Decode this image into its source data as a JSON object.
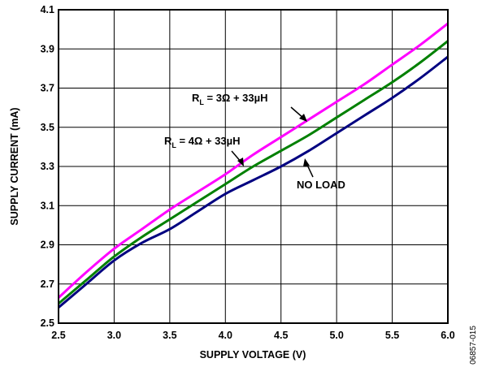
{
  "chart_data": {
    "type": "line",
    "xlabel": "SUPPLY VOLTAGE (V)",
    "ylabel": "SUPPLY CURRENT (mA)",
    "xlim": [
      2.5,
      6.0
    ],
    "ylim": [
      2.5,
      4.1
    ],
    "xticks": [
      "2.5",
      "3.0",
      "3.5",
      "4.0",
      "4.5",
      "5.0",
      "5.5",
      "6.0"
    ],
    "yticks": [
      "2.5",
      "2.7",
      "2.9",
      "3.1",
      "3.3",
      "3.5",
      "3.7",
      "3.9",
      "4.1"
    ],
    "grid": true,
    "figure_id": "06857-015",
    "series": [
      {
        "name": "RL = 3Ω + 33µH",
        "color": "#ff00ff",
        "x": [
          2.5,
          2.75,
          3.0,
          3.25,
          3.5,
          3.75,
          4.0,
          4.25,
          4.5,
          4.75,
          5.0,
          5.25,
          5.5,
          5.75,
          6.0
        ],
        "y": [
          2.63,
          2.76,
          2.88,
          2.98,
          3.08,
          3.17,
          3.26,
          3.36,
          3.45,
          3.54,
          3.63,
          3.72,
          3.82,
          3.92,
          4.03
        ]
      },
      {
        "name": "RL = 4Ω + 33µH",
        "color": "#008000",
        "x": [
          2.5,
          2.75,
          3.0,
          3.25,
          3.5,
          3.75,
          4.0,
          4.25,
          4.5,
          4.75,
          5.0,
          5.25,
          5.5,
          5.75,
          6.0
        ],
        "y": [
          2.6,
          2.72,
          2.84,
          2.94,
          3.03,
          3.12,
          3.21,
          3.3,
          3.38,
          3.46,
          3.55,
          3.64,
          3.73,
          3.83,
          3.94
        ]
      },
      {
        "name": "NO LOAD",
        "color": "#000080",
        "x": [
          2.5,
          2.75,
          3.0,
          3.25,
          3.5,
          3.75,
          4.0,
          4.25,
          4.5,
          4.75,
          5.0,
          5.25,
          5.5,
          5.75,
          6.0
        ],
        "y": [
          2.58,
          2.7,
          2.82,
          2.91,
          2.98,
          3.07,
          3.16,
          3.23,
          3.3,
          3.38,
          3.47,
          3.56,
          3.65,
          3.75,
          3.86
        ]
      }
    ],
    "annotations": [
      {
        "main": "R",
        "sub": "L",
        "rest": " = 3Ω + 33µH"
      },
      {
        "main": "R",
        "sub": "L",
        "rest": " = 4Ω + 33µH"
      },
      {
        "text": "NO LOAD"
      }
    ]
  }
}
